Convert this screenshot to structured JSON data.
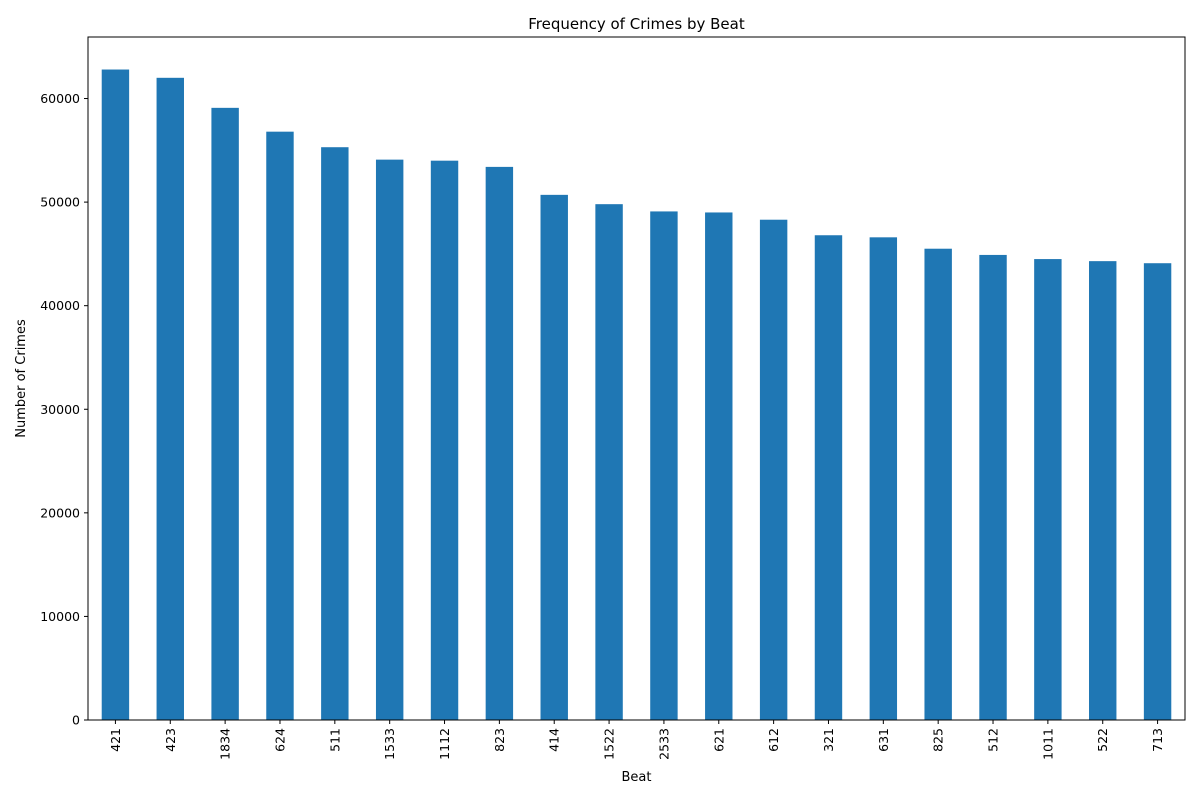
{
  "chart_data": {
    "type": "bar",
    "title": "Frequency of Crimes by Beat",
    "xlabel": "Beat",
    "ylabel": "Number of Crimes",
    "categories": [
      "421",
      "423",
      "1834",
      "624",
      "511",
      "1533",
      "1112",
      "823",
      "414",
      "1522",
      "2533",
      "621",
      "612",
      "321",
      "631",
      "825",
      "512",
      "1011",
      "522",
      "713"
    ],
    "values": [
      62800,
      62000,
      59100,
      56800,
      55300,
      54100,
      54000,
      53400,
      50700,
      49800,
      49100,
      49000,
      48300,
      46800,
      46600,
      45500,
      44900,
      44500,
      44300,
      44100
    ],
    "ylim": [
      0,
      65940
    ],
    "yticks": [
      0,
      10000,
      20000,
      30000,
      40000,
      50000,
      60000
    ],
    "grid": false,
    "legend": "none",
    "bar_color": "#1f77b4"
  }
}
